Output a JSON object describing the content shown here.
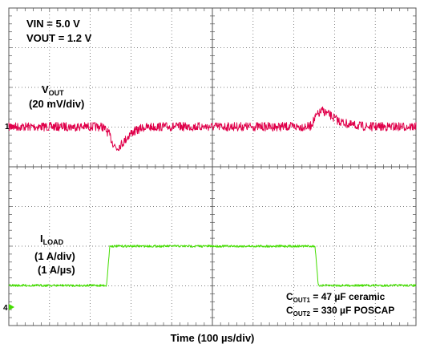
{
  "chart_data": {
    "type": "line",
    "title": "",
    "xlabel": "Time (100 µs/div)",
    "divisions": {
      "x": 10,
      "y": 8
    },
    "conditions": {
      "vin": "VIN = 5.0 V",
      "vout": "VOUT = 1.2 V"
    },
    "series": [
      {
        "name": "VOUT",
        "label_main": "V",
        "label_sub": "OUT",
        "scale": "(20 mV/div)",
        "unit": "mV",
        "channel_marker": "1",
        "color": "#e0004a",
        "x_div": [
          0,
          2.3,
          2.45,
          2.55,
          2.65,
          2.8,
          3.0,
          3.3,
          3.7,
          4.2,
          7.4,
          7.55,
          7.7,
          7.9,
          8.1,
          8.4,
          8.8,
          9.2,
          10.0
        ],
        "y": [
          0,
          0,
          -8,
          -20,
          -27,
          -20,
          -8,
          -1,
          0,
          0,
          0,
          13,
          20,
          14,
          7,
          2,
          0,
          0,
          0
        ]
      },
      {
        "name": "ILOAD",
        "label_main": "I",
        "label_sub": "LOAD",
        "scale": "(1 A/div)",
        "slew": "(1 A/µs)",
        "unit": "A",
        "channel_marker": "4",
        "color": "#44dd00",
        "x_div": [
          0,
          2.4,
          2.48,
          7.52,
          7.6,
          10.0
        ],
        "y": [
          0,
          0,
          2,
          2,
          0,
          0
        ]
      }
    ],
    "annotation": {
      "cout1_main": "C",
      "cout1_sub": "OUT1",
      "cout1_text": " = 47 µF ceramic",
      "cout2_main": "C",
      "cout2_sub": "OUT2",
      "cout2_text": " = 330 µF POSCAP"
    },
    "grid": true,
    "background": "#ffffff",
    "grid_color": "#555555"
  }
}
